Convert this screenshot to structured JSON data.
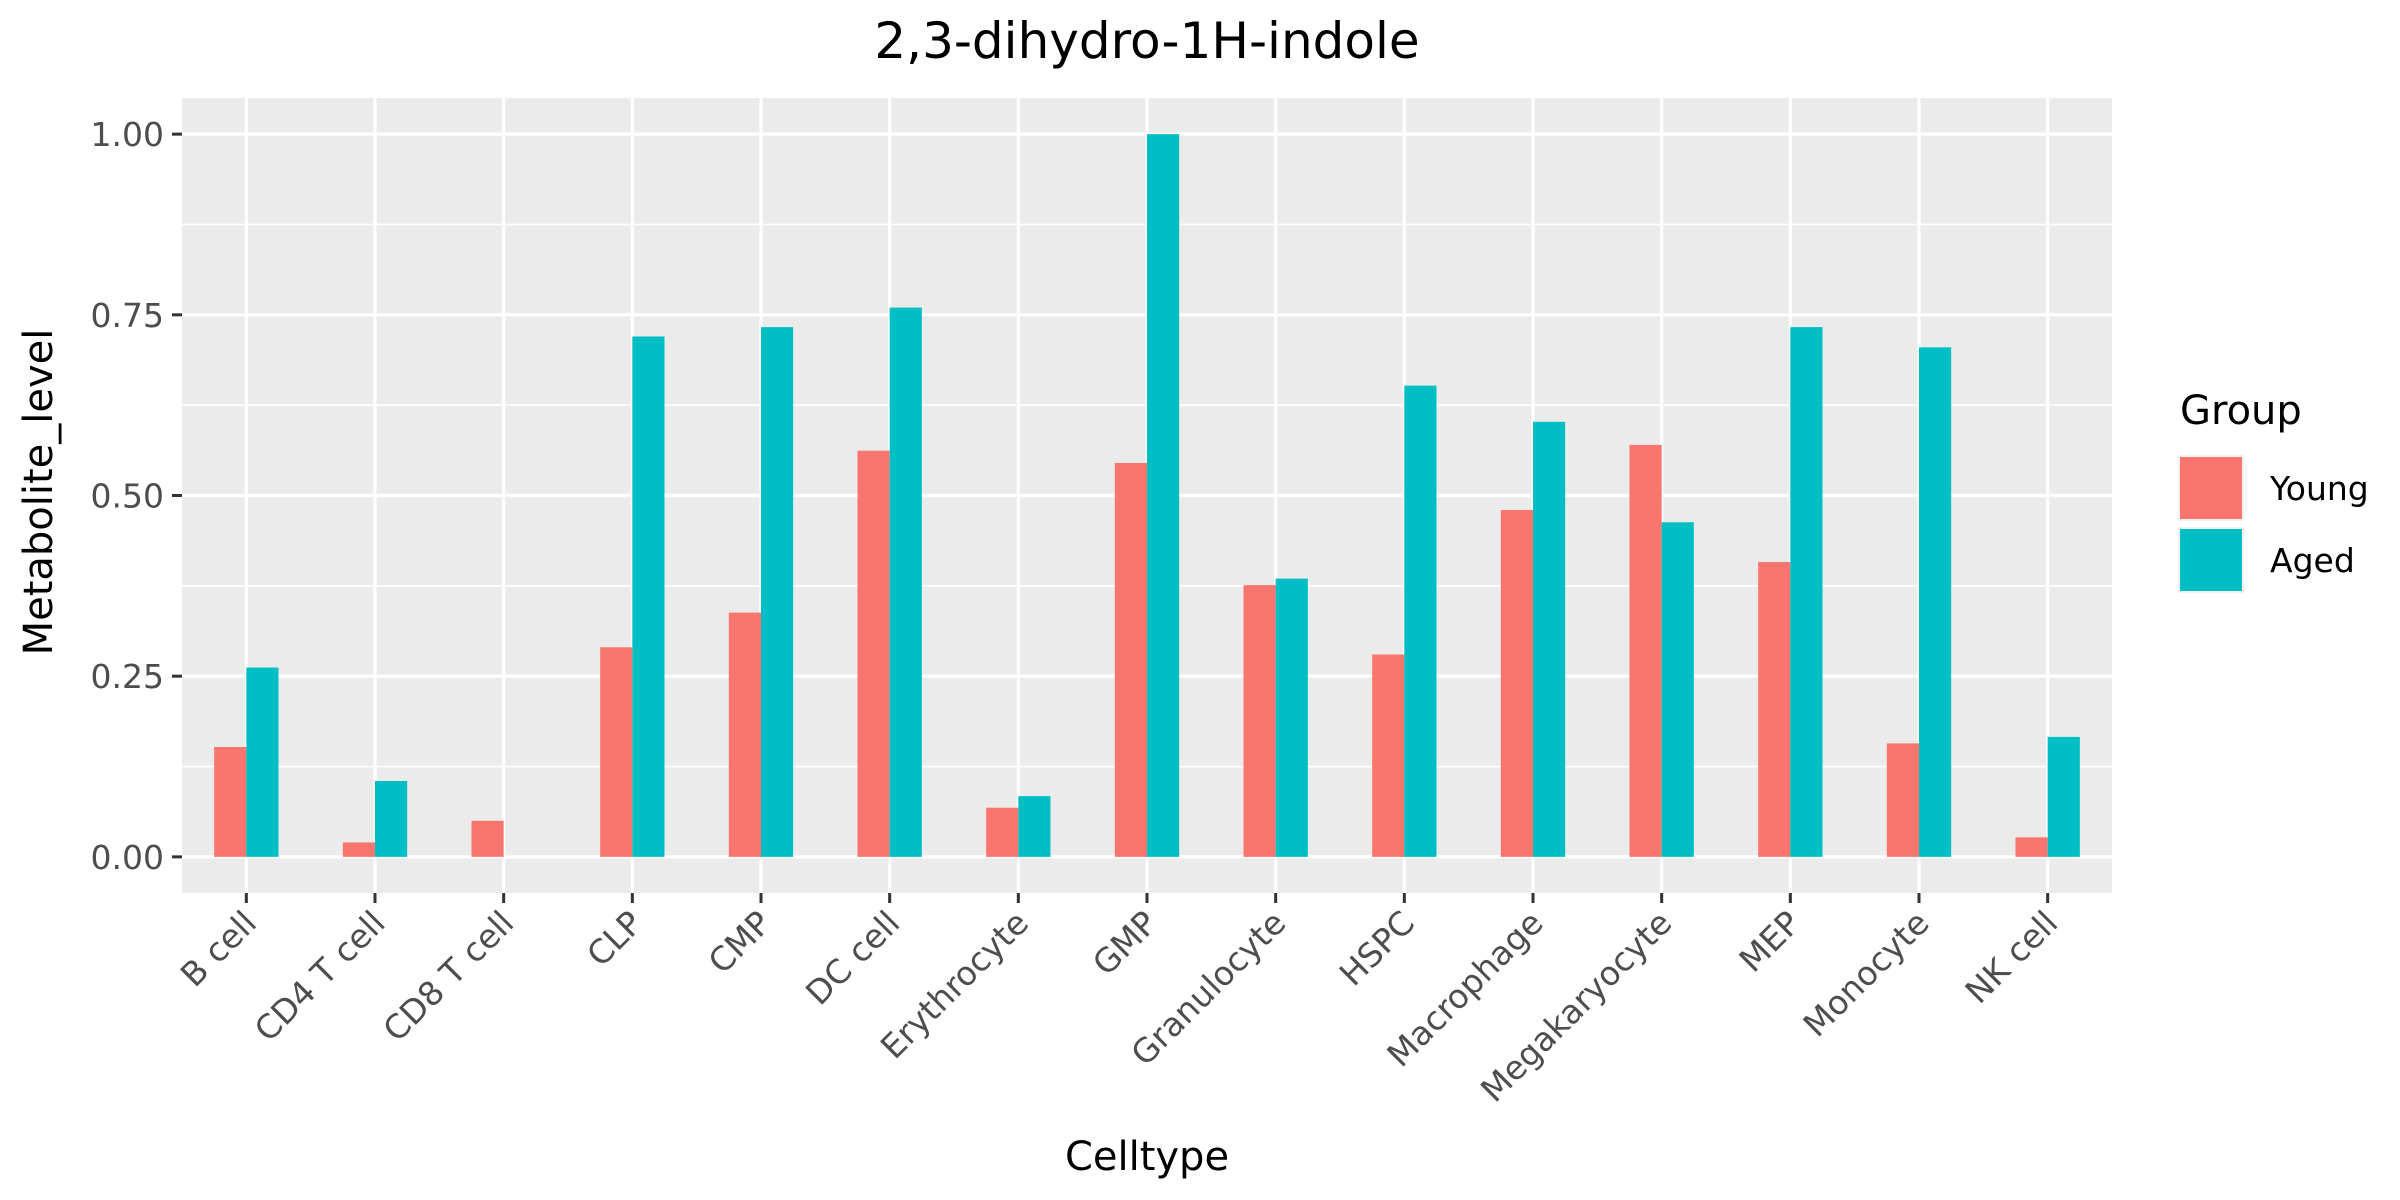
{
  "chart_data": {
    "type": "bar",
    "title": "2,3-dihydro-1H-indole",
    "xlabel": "Celltype",
    "ylabel": "Metabolite_level",
    "ylim": [
      -0.05,
      1.05
    ],
    "yticks": [
      0.0,
      0.25,
      0.5,
      0.75,
      1.0
    ],
    "ytick_labels": [
      "0.00",
      "0.25",
      "0.50",
      "0.75",
      "1.00"
    ],
    "categories": [
      "B cell",
      "CD4 T cell",
      "CD8 T cell",
      "CLP",
      "CMP",
      "DC cell",
      "Erythrocyte",
      "GMP",
      "Granulocyte",
      "HSPC",
      "Macrophage",
      "Megakaryocyte",
      "MEP",
      "Monocyte",
      "NK cell"
    ],
    "series": [
      {
        "name": "Young",
        "color": "#F8766D",
        "values": [
          0.152,
          0.02,
          0.05,
          0.29,
          0.338,
          0.562,
          0.068,
          0.545,
          0.376,
          0.28,
          0.48,
          0.57,
          0.408,
          0.157,
          0.027
        ]
      },
      {
        "name": "Aged",
        "color": "#00BFC4",
        "values": [
          0.262,
          0.105,
          0.0,
          0.72,
          0.733,
          0.76,
          0.084,
          1.0,
          0.385,
          0.652,
          0.602,
          0.463,
          0.733,
          0.705,
          0.166
        ]
      }
    ],
    "grid": true,
    "legend": {
      "title": "Group",
      "position": "right"
    },
    "panel_color": "#EBEBEB",
    "grid_color": "#FFFFFF"
  }
}
